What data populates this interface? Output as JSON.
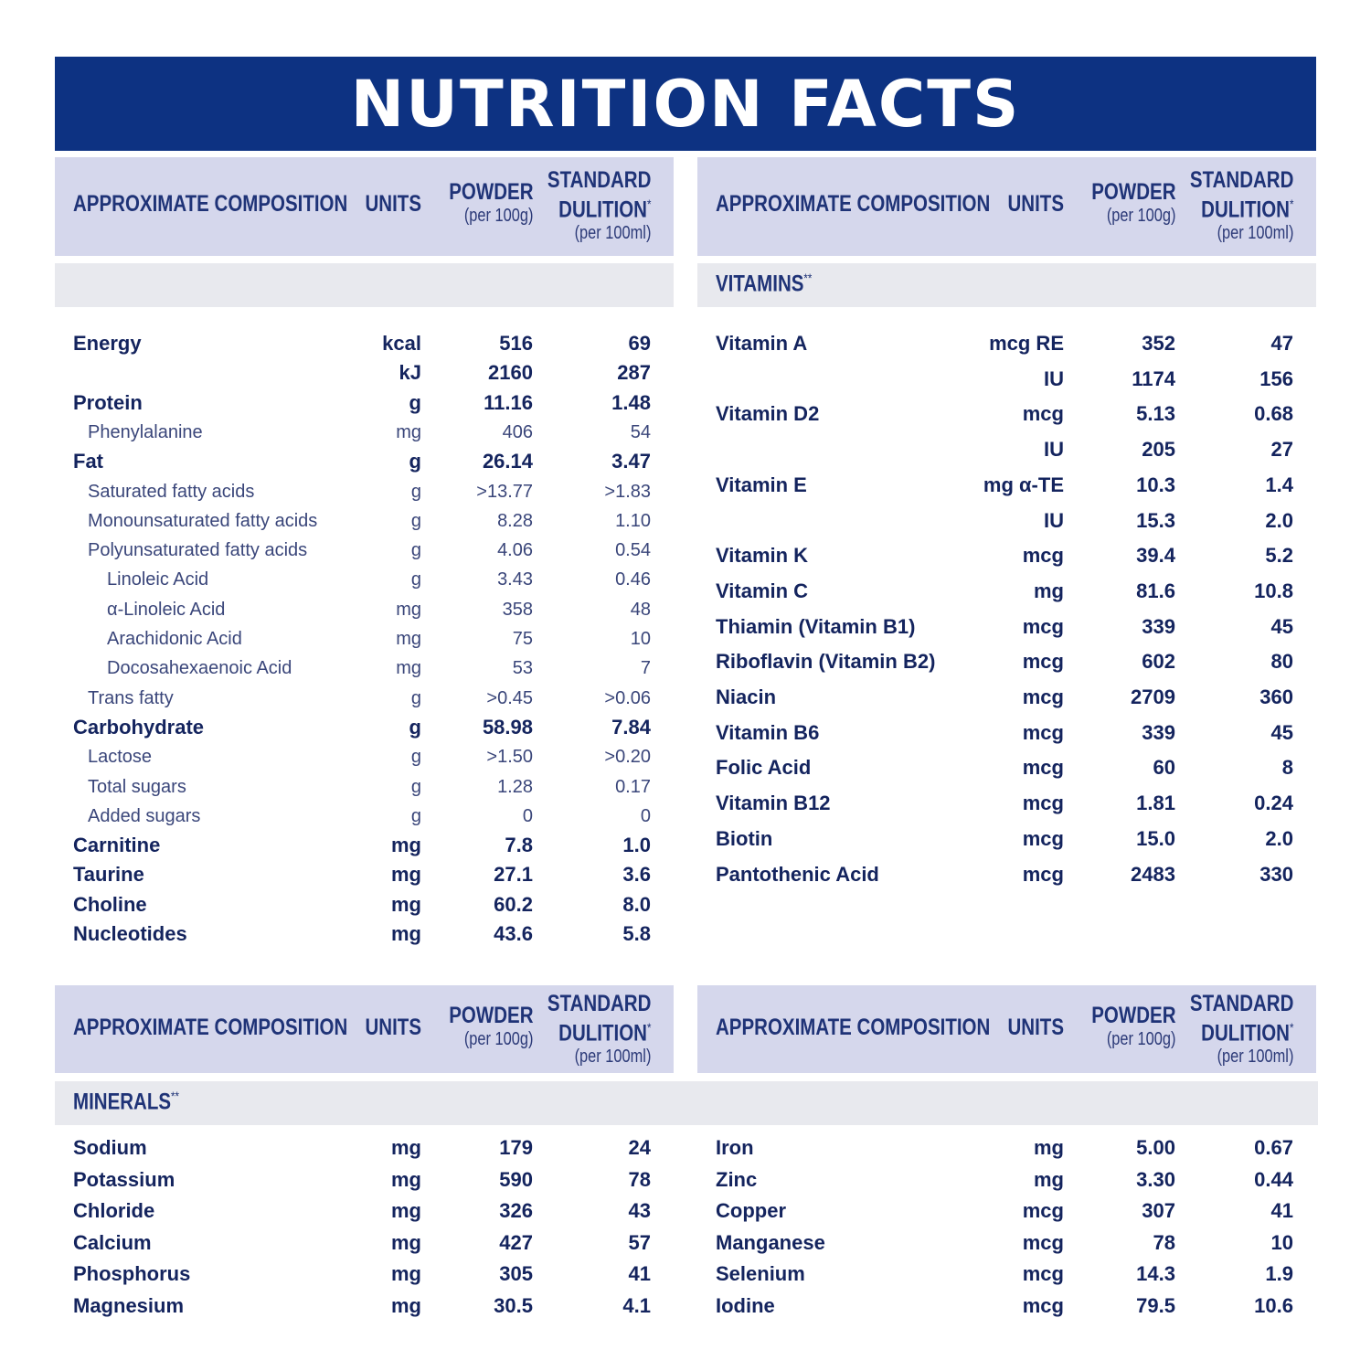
{
  "title": "NUTRITION FACTS",
  "header": {
    "composition": "APPROXIMATE COMPOSITION",
    "units": "UNITS",
    "powder": "POWDER",
    "powder_sub": "(per 100g)",
    "standard_1": "STANDARD",
    "standard_2": "DULITION",
    "standard_star": "*",
    "standard_sub": "(per 100ml)"
  },
  "sections": {
    "vitamins": "VITAMINS",
    "minerals": "MINERALS",
    "star": "**"
  },
  "macros": [
    {
      "name": "Energy",
      "unit": "kcal",
      "powder": "516",
      "standard": "69",
      "style": "b",
      "indent": 0
    },
    {
      "name": "",
      "unit": "kJ",
      "powder": "2160",
      "standard": "287",
      "style": "b",
      "indent": 0
    },
    {
      "name": "Protein",
      "unit": "g",
      "powder": "11.16",
      "standard": "1.48",
      "style": "b",
      "indent": 0
    },
    {
      "name": "Phenylalanine",
      "unit": "mg",
      "powder": "406",
      "standard": "54",
      "style": "n",
      "indent": 1
    },
    {
      "name": "Fat",
      "unit": "g",
      "powder": "26.14",
      "standard": "3.47",
      "style": "b",
      "indent": 0
    },
    {
      "name": "Saturated fatty acids",
      "unit": "g",
      "powder": ">13.77",
      "standard": ">1.83",
      "style": "n",
      "indent": 1
    },
    {
      "name": "Monounsaturated fatty acids",
      "unit": "g",
      "powder": "8.28",
      "standard": "1.10",
      "style": "n",
      "indent": 1
    },
    {
      "name": "Polyunsaturated fatty acids",
      "unit": "g",
      "powder": "4.06",
      "standard": "0.54",
      "style": "n",
      "indent": 1
    },
    {
      "name": "Linoleic Acid",
      "unit": "g",
      "powder": "3.43",
      "standard": "0.46",
      "style": "n",
      "indent": 2
    },
    {
      "name": "α-Linoleic Acid",
      "unit": "mg",
      "powder": "358",
      "standard": "48",
      "style": "n",
      "indent": 2
    },
    {
      "name": "Arachidonic Acid",
      "unit": "mg",
      "powder": "75",
      "standard": "10",
      "style": "n",
      "indent": 2
    },
    {
      "name": "Docosahexaenoic Acid",
      "unit": "mg",
      "powder": "53",
      "standard": "7",
      "style": "n",
      "indent": 2
    },
    {
      "name": "Trans fatty",
      "unit": "g",
      "powder": ">0.45",
      "standard": ">0.06",
      "style": "n",
      "indent": 1
    },
    {
      "name": "Carbohydrate",
      "unit": "g",
      "powder": "58.98",
      "standard": "7.84",
      "style": "b",
      "indent": 0
    },
    {
      "name": "Lactose",
      "unit": "g",
      "powder": ">1.50",
      "standard": ">0.20",
      "style": "n",
      "indent": 1
    },
    {
      "name": "Total sugars",
      "unit": "g",
      "powder": "1.28",
      "standard": "0.17",
      "style": "n",
      "indent": 1
    },
    {
      "name": "Added sugars",
      "unit": "g",
      "powder": "0",
      "standard": "0",
      "style": "n",
      "indent": 1
    },
    {
      "name": "Carnitine",
      "unit": "mg",
      "powder": "7.8",
      "standard": "1.0",
      "style": "b",
      "indent": 0
    },
    {
      "name": "Taurine",
      "unit": "mg",
      "powder": "27.1",
      "standard": "3.6",
      "style": "b",
      "indent": 0
    },
    {
      "name": "Choline",
      "unit": "mg",
      "powder": "60.2",
      "standard": "8.0",
      "style": "b",
      "indent": 0
    },
    {
      "name": "Nucleotides",
      "unit": "mg",
      "powder": "43.6",
      "standard": "5.8",
      "style": "b",
      "indent": 0
    }
  ],
  "vitamins": [
    {
      "name": "Vitamin A",
      "unit": "mcg RE",
      "powder": "352",
      "standard": "47"
    },
    {
      "name": "",
      "unit": "IU",
      "powder": "1174",
      "standard": "156"
    },
    {
      "name": "Vitamin D2",
      "unit": "mcg",
      "powder": "5.13",
      "standard": "0.68"
    },
    {
      "name": "",
      "unit": "IU",
      "powder": "205",
      "standard": "27"
    },
    {
      "name": "Vitamin E",
      "unit": "mg α-TE",
      "powder": "10.3",
      "standard": "1.4"
    },
    {
      "name": "",
      "unit": "IU",
      "powder": "15.3",
      "standard": "2.0"
    },
    {
      "name": "Vitamin K",
      "unit": "mcg",
      "powder": "39.4",
      "standard": "5.2"
    },
    {
      "name": "Vitamin C",
      "unit": "mg",
      "powder": "81.6",
      "standard": "10.8"
    },
    {
      "name": "Thiamin (Vitamin B1)",
      "unit": "mcg",
      "powder": "339",
      "standard": "45"
    },
    {
      "name": "Riboflavin (Vitamin B2)",
      "unit": "mcg",
      "powder": "602",
      "standard": "80"
    },
    {
      "name": "Niacin",
      "unit": "mcg",
      "powder": "2709",
      "standard": "360"
    },
    {
      "name": "Vitamin B6",
      "unit": "mcg",
      "powder": "339",
      "standard": "45"
    },
    {
      "name": "Folic Acid",
      "unit": "mcg",
      "powder": "60",
      "standard": "8"
    },
    {
      "name": "Vitamin B12",
      "unit": "mcg",
      "powder": "1.81",
      "standard": "0.24"
    },
    {
      "name": "Biotin",
      "unit": "mcg",
      "powder": "15.0",
      "standard": "2.0"
    },
    {
      "name": "Pantothenic Acid",
      "unit": "mcg",
      "powder": "2483",
      "standard": "330"
    }
  ],
  "minerals_left": [
    {
      "name": "Sodium",
      "unit": "mg",
      "powder": "179",
      "standard": "24"
    },
    {
      "name": "Potassium",
      "unit": "mg",
      "powder": "590",
      "standard": "78"
    },
    {
      "name": "Chloride",
      "unit": "mg",
      "powder": "326",
      "standard": "43"
    },
    {
      "name": "Calcium",
      "unit": "mg",
      "powder": "427",
      "standard": "57"
    },
    {
      "name": "Phosphorus",
      "unit": "mg",
      "powder": "305",
      "standard": "41"
    },
    {
      "name": "Magnesium",
      "unit": "mg",
      "powder": "30.5",
      "standard": "4.1"
    }
  ],
  "minerals_right": [
    {
      "name": "Iron",
      "unit": "mg",
      "powder": "5.00",
      "standard": "0.67"
    },
    {
      "name": "Zinc",
      "unit": "mg",
      "powder": "3.30",
      "standard": "0.44"
    },
    {
      "name": "Copper",
      "unit": "mcg",
      "powder": "307",
      "standard": "41"
    },
    {
      "name": "Manganese",
      "unit": "mcg",
      "powder": "78",
      "standard": "10"
    },
    {
      "name": "Selenium",
      "unit": "mcg",
      "powder": "14.3",
      "standard": "1.9"
    },
    {
      "name": "Iodine",
      "unit": "mcg",
      "powder": "79.5",
      "standard": "10.6"
    }
  ]
}
